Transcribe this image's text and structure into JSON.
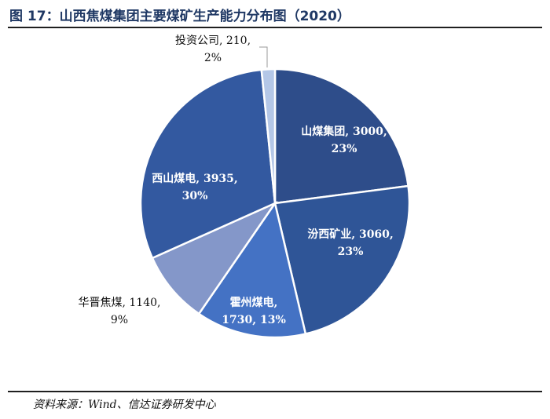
{
  "header": {
    "title": "图 17：山西焦煤集团主要煤矿生产能力分布图（2020）"
  },
  "footer": {
    "source": "资料来源：Wind、信达证券研发中心"
  },
  "chart_data": {
    "type": "pie",
    "title": "图 17：山西焦煤集团主要煤矿生产能力分布图（2020）",
    "slices": [
      {
        "name": "山煤集团",
        "value": 3000,
        "percent": "23%",
        "color": "#2e4d8a",
        "label_line1": "山煤集团, 3000,",
        "label_line2": "23%"
      },
      {
        "name": "汾西矿业",
        "value": 3060,
        "percent": "23%",
        "color": "#2f5597",
        "label_line1": "汾西矿业, 3060,",
        "label_line2": "23%"
      },
      {
        "name": "霍州煤电",
        "value": 1730,
        "percent": "13%",
        "color": "#4472c4",
        "label_line1": "霍州煤电,",
        "label_line2": "1730, 13%"
      },
      {
        "name": "华晋焦煤",
        "value": 1140,
        "percent": "9%",
        "color": "#8497c9",
        "label_line1": "华晋焦煤, 1140,",
        "label_line2": "9%"
      },
      {
        "name": "西山煤电",
        "value": 3935,
        "percent": "30%",
        "color": "#3359a0",
        "label_line1": "西山煤电, 3935,",
        "label_line2": "30%"
      },
      {
        "name": "投资公司",
        "value": 210,
        "percent": "2%",
        "color": "#b4c7e7",
        "label_line1": "投资公司, 210,",
        "label_line2": "2%"
      }
    ]
  }
}
